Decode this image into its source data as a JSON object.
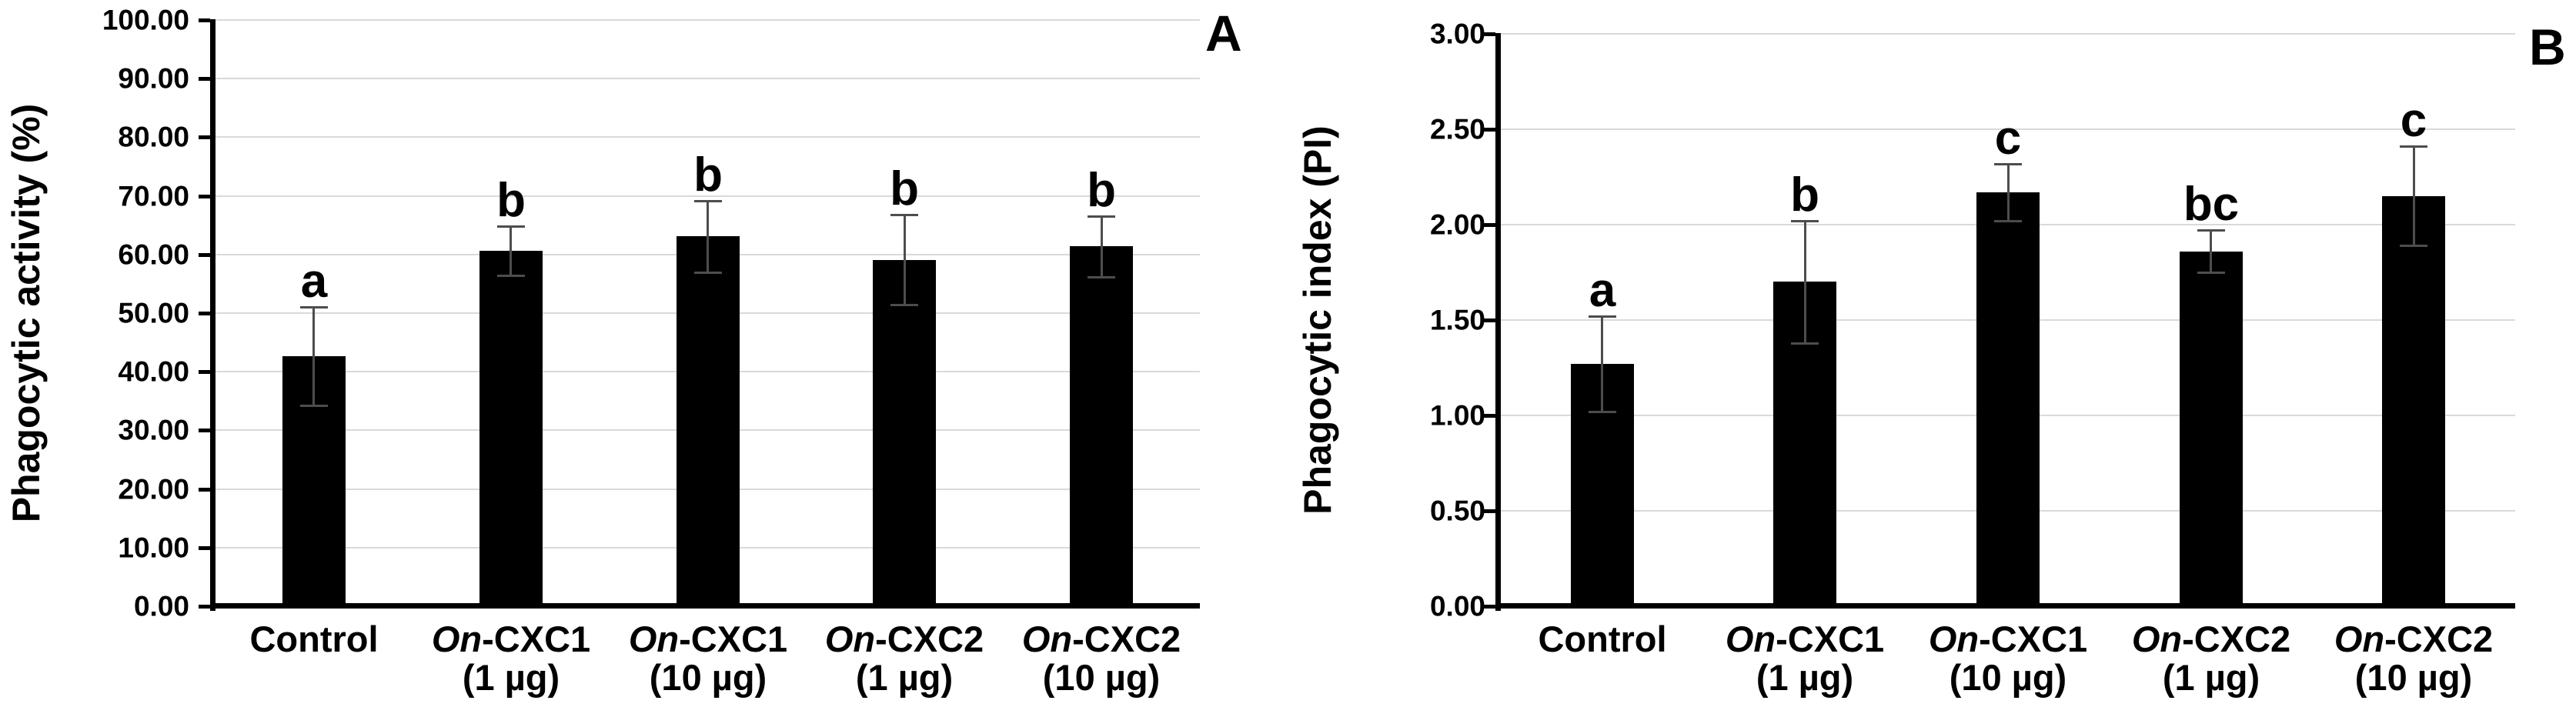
{
  "figure": {
    "background": "#ffffff",
    "text_color": "#000000"
  },
  "chart_data": [
    {
      "type": "bar",
      "panel_label": "A",
      "title": "",
      "xlabel": "",
      "ylabel": "Phagocytic activity (%)",
      "ylim": [
        0,
        100
      ],
      "ytick_step": 10,
      "ytick_labels": [
        "0.00",
        "10.00",
        "20.00",
        "30.00",
        "40.00",
        "50.00",
        "60.00",
        "70.00",
        "80.00",
        "90.00",
        "100.00"
      ],
      "grid": true,
      "legend": null,
      "categories": [
        "Control",
        "On-CXC1 (1 µg)",
        "On-CXC1 (10 µg)",
        "On-CXC2 (1 µg)",
        "On-CXC2 (10 µg)"
      ],
      "category_lines": [
        {
          "pre_italic": "",
          "name": "Control",
          "dose": ""
        },
        {
          "pre_italic": "On",
          "name": "-CXC1",
          "dose": "(1 µg)"
        },
        {
          "pre_italic": "On",
          "name": "-CXC1",
          "dose": "(10 µg)"
        },
        {
          "pre_italic": "On",
          "name": "-CXC2",
          "dose": "(1 µg)"
        },
        {
          "pre_italic": "On",
          "name": "-CXC2",
          "dose": "(10 µg)"
        }
      ],
      "values": [
        42.7,
        60.6,
        63.1,
        59.1,
        61.4
      ],
      "errors": [
        8.4,
        4.2,
        6.1,
        7.7,
        5.2
      ],
      "sig_letters": [
        "a",
        "b",
        "b",
        "b",
        "b"
      ],
      "bar_color": "#000000",
      "error_color": "#4d4d4d",
      "grid_color": "#d9d9d9",
      "axis_color": "#000000"
    },
    {
      "type": "bar",
      "panel_label": "B",
      "title": "",
      "xlabel": "",
      "ylabel": "Phagocytic index (PI)",
      "ylim": [
        0,
        3
      ],
      "ytick_step": 0.5,
      "ytick_labels": [
        "0.00",
        "0.50",
        "1.00",
        "1.50",
        "2.00",
        "2.50",
        "3.00"
      ],
      "grid": true,
      "legend": null,
      "categories": [
        "Control",
        "On-CXC1 (1 µg)",
        "On-CXC1 (10 µg)",
        "On-CXC2 (1 µg)",
        "On-CXC2 (10 µg)"
      ],
      "category_lines": [
        {
          "pre_italic": "",
          "name": "Control",
          "dose": ""
        },
        {
          "pre_italic": "On",
          "name": "-CXC1",
          "dose": "(1 µg)"
        },
        {
          "pre_italic": "On",
          "name": "-CXC1",
          "dose": "(10 µg)"
        },
        {
          "pre_italic": "On",
          "name": "-CXC2",
          "dose": "(1 µg)"
        },
        {
          "pre_italic": "On",
          "name": "-CXC2",
          "dose": "(10 µg)"
        }
      ],
      "values": [
        1.27,
        1.7,
        2.17,
        1.86,
        2.15
      ],
      "errors": [
        0.25,
        0.32,
        0.15,
        0.11,
        0.26
      ],
      "sig_letters": [
        "a",
        "b",
        "c",
        "bc",
        "c"
      ],
      "bar_color": "#000000",
      "error_color": "#4d4d4d",
      "grid_color": "#d9d9d9",
      "axis_color": "#000000"
    }
  ]
}
